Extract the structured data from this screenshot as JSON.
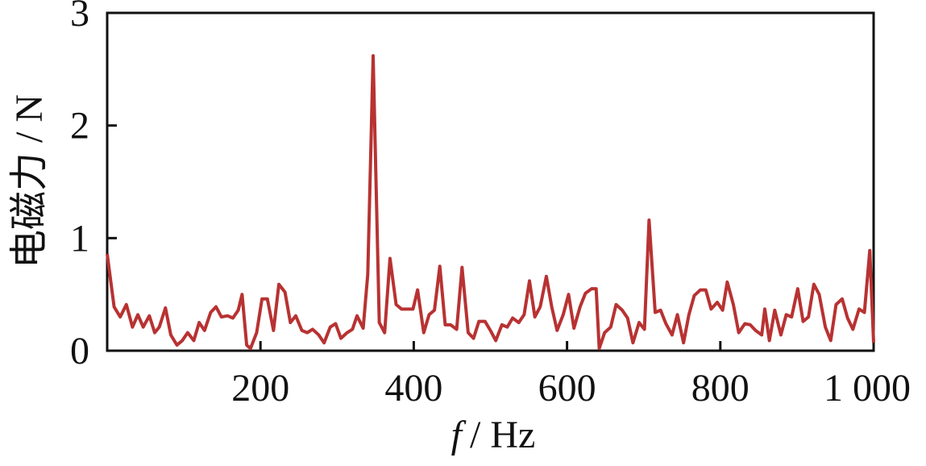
{
  "chart_data": {
    "type": "line",
    "xlabel": "/ Hz",
    "xlabel_var": "f",
    "ylabel": "电磁力 / N",
    "xlim": [
      0,
      1000
    ],
    "ylim": [
      0,
      3
    ],
    "xticks": [
      200,
      400,
      600,
      800,
      {
        "value": 1000,
        "label": "1 000"
      }
    ],
    "yticks": [
      0,
      1,
      2,
      3
    ],
    "series": [
      {
        "name": "电磁力",
        "color": "#b83232",
        "x": [
          0,
          9,
          17,
          25,
          33,
          40,
          47,
          55,
          62,
          68,
          76,
          83,
          91,
          98,
          105,
          113,
          120,
          127,
          135,
          142,
          149,
          157,
          164,
          171,
          176,
          182,
          187,
          195,
          202,
          209,
          217,
          224,
          232,
          239,
          246,
          254,
          261,
          268,
          276,
          283,
          291,
          298,
          305,
          313,
          320,
          326,
          334,
          340,
          347,
          355,
          362,
          369,
          377,
          384,
          392,
          399,
          405,
          413,
          420,
          427,
          434,
          441,
          448,
          456,
          463,
          471,
          478,
          485,
          493,
          500,
          507,
          515,
          522,
          529,
          537,
          544,
          551,
          558,
          565,
          573,
          580,
          587,
          595,
          602,
          609,
          617,
          624,
          632,
          638,
          642,
          649,
          657,
          664,
          672,
          679,
          686,
          694,
          701,
          707,
          715,
          722,
          729,
          737,
          744,
          752,
          759,
          766,
          774,
          781,
          788,
          796,
          803,
          809,
          817,
          824,
          832,
          839,
          846,
          854,
          858,
          864,
          871,
          879,
          886,
          893,
          901,
          908,
          915,
          922,
          929,
          937,
          944,
          951,
          959,
          966,
          973,
          981,
          988,
          995,
          1000
        ],
        "values": [
          0.86,
          0.39,
          0.3,
          0.41,
          0.21,
          0.32,
          0.21,
          0.31,
          0.16,
          0.21,
          0.38,
          0.14,
          0.05,
          0.09,
          0.16,
          0.09,
          0.25,
          0.18,
          0.34,
          0.39,
          0.3,
          0.31,
          0.29,
          0.36,
          0.5,
          0.05,
          0.02,
          0.16,
          0.46,
          0.46,
          0.18,
          0.59,
          0.52,
          0.25,
          0.31,
          0.18,
          0.16,
          0.19,
          0.14,
          0.07,
          0.21,
          0.24,
          0.11,
          0.16,
          0.19,
          0.31,
          0.2,
          0.68,
          2.62,
          0.25,
          0.16,
          0.82,
          0.41,
          0.37,
          0.37,
          0.37,
          0.54,
          0.16,
          0.32,
          0.36,
          0.75,
          0.23,
          0.23,
          0.19,
          0.74,
          0.16,
          0.11,
          0.26,
          0.26,
          0.18,
          0.09,
          0.23,
          0.21,
          0.29,
          0.25,
          0.32,
          0.62,
          0.3,
          0.39,
          0.66,
          0.39,
          0.18,
          0.32,
          0.5,
          0.2,
          0.39,
          0.51,
          0.55,
          0.55,
          0.02,
          0.16,
          0.21,
          0.41,
          0.36,
          0.29,
          0.07,
          0.25,
          0.19,
          1.16,
          0.34,
          0.36,
          0.24,
          0.14,
          0.32,
          0.07,
          0.32,
          0.49,
          0.54,
          0.54,
          0.37,
          0.43,
          0.36,
          0.61,
          0.41,
          0.16,
          0.24,
          0.23,
          0.18,
          0.14,
          0.37,
          0.09,
          0.36,
          0.14,
          0.32,
          0.3,
          0.55,
          0.26,
          0.3,
          0.59,
          0.5,
          0.21,
          0.09,
          0.41,
          0.46,
          0.29,
          0.19,
          0.37,
          0.34,
          0.89,
          0.07
        ]
      }
    ]
  }
}
